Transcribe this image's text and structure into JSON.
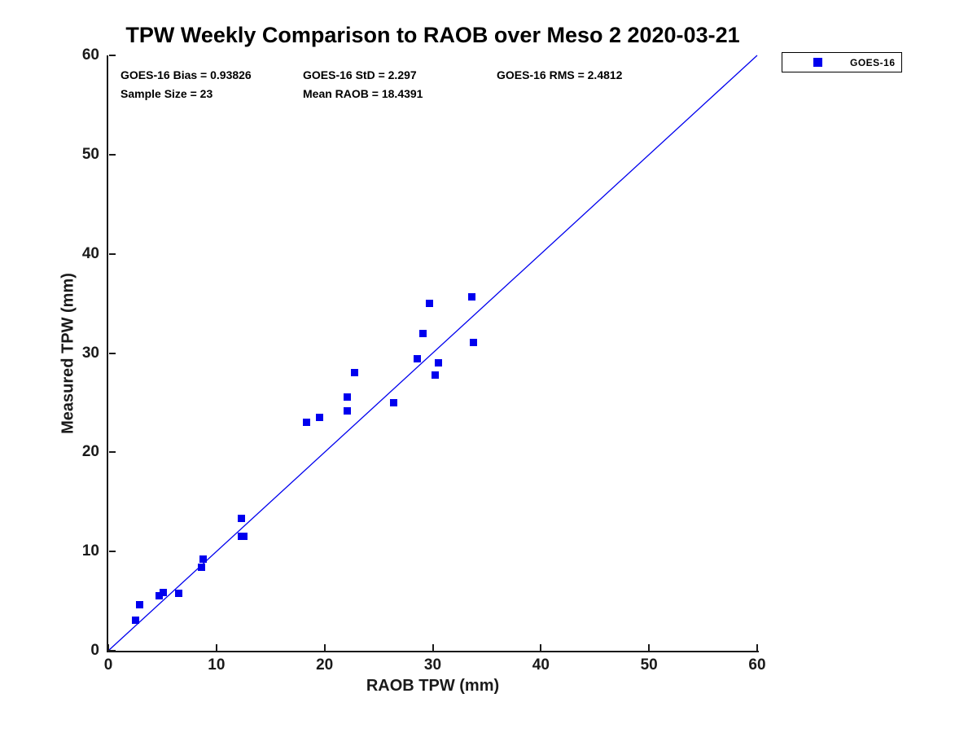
{
  "chart_data": {
    "type": "scatter",
    "title": "TPW Weekly Comparison to RAOB over Meso 2 2020-03-21",
    "xlabel": "RAOB TPW (mm)",
    "ylabel": "Measured TPW (mm)",
    "xlim": [
      0,
      60
    ],
    "ylim": [
      0,
      60
    ],
    "xticks": [
      0,
      10,
      20,
      30,
      40,
      50,
      60
    ],
    "yticks": [
      0,
      10,
      20,
      30,
      40,
      50,
      60
    ],
    "grid": false,
    "axis_color": "#1a1a1a",
    "series": [
      {
        "name": "GOES-16",
        "marker": "square",
        "color": "#0000ee",
        "points": [
          [
            2.5,
            3.1
          ],
          [
            2.9,
            4.6
          ],
          [
            4.7,
            5.5
          ],
          [
            5.1,
            5.9
          ],
          [
            6.5,
            5.8
          ],
          [
            8.6,
            8.4
          ],
          [
            8.8,
            9.2
          ],
          [
            12.3,
            11.5
          ],
          [
            12.5,
            11.5
          ],
          [
            12.3,
            13.3
          ],
          [
            18.3,
            23.0
          ],
          [
            19.5,
            23.5
          ],
          [
            22.1,
            24.2
          ],
          [
            22.1,
            25.6
          ],
          [
            22.8,
            28.0
          ],
          [
            26.4,
            25.0
          ],
          [
            28.6,
            29.4
          ],
          [
            29.1,
            32.0
          ],
          [
            29.7,
            35.0
          ],
          [
            30.2,
            27.8
          ],
          [
            30.5,
            29.0
          ],
          [
            33.6,
            35.7
          ],
          [
            33.8,
            31.1
          ]
        ]
      }
    ],
    "reference_line": {
      "name": "1:1 identity line",
      "x": [
        0,
        60
      ],
      "y": [
        0,
        60
      ],
      "color": "#0000ee"
    },
    "annotations": {
      "bias": "GOES-16 Bias = 0.93826",
      "std": "GOES-16 StD = 2.297",
      "rms": "GOES-16 RMS = 2.4812",
      "sample_size": "Sample Size = 23",
      "mean_raob": "Mean RAOB = 18.4391"
    },
    "legend": {
      "label": "GOES-16",
      "position": "top-right-outside"
    }
  }
}
